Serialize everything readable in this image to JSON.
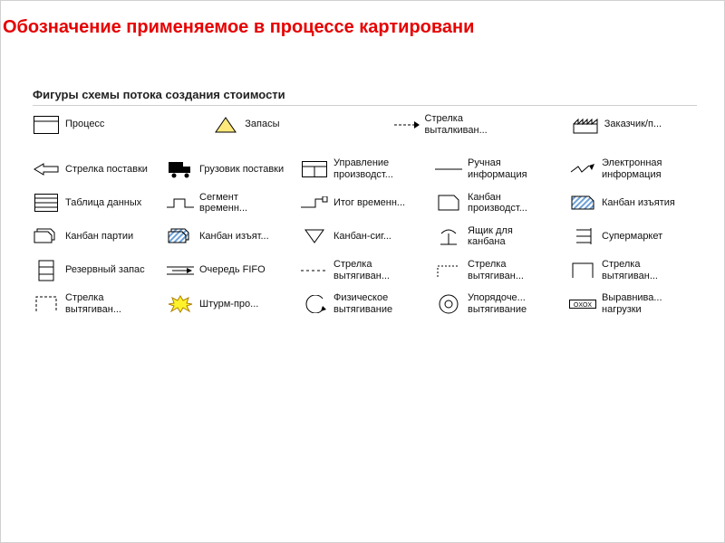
{
  "title": "Обозначение применяемое в процессе картировани",
  "panel_heading": "Фигуры схемы потока создания стоимости",
  "colors": {
    "title": "#e60000",
    "text": "#111111",
    "stroke": "#000000",
    "triangle_fill": "#ffe97a",
    "hatch": "#6aa0d8",
    "burst_fill": "#fff22b",
    "burst_stroke": "#b08000",
    "grey": "#666666",
    "light": "#ffffff"
  },
  "rows": [
    {
      "first": true,
      "items": [
        {
          "name": "process",
          "icon": "process",
          "label": "Процесс"
        },
        {
          "name": "inventory",
          "icon": "triangle",
          "label": "Запасы"
        },
        {
          "name": "push-arrow",
          "icon": "push-arrow",
          "label": "Стрелка выталкиван..."
        },
        {
          "name": "customer",
          "icon": "factory",
          "label": "Заказчик/п..."
        }
      ]
    },
    {
      "items": [
        {
          "name": "ship-arrow",
          "icon": "open-arrow",
          "label": "Стрелка поставки"
        },
        {
          "name": "truck",
          "icon": "truck",
          "label": "Грузовик поставки"
        },
        {
          "name": "prod-control",
          "icon": "control-box",
          "label": "Управление производст..."
        },
        {
          "name": "manual-info",
          "icon": "thin-line",
          "label": "Ручная информация"
        },
        {
          "name": "electronic-info",
          "icon": "lightning",
          "label": "Электронная информация"
        }
      ]
    },
    {
      "items": [
        {
          "name": "data-table",
          "icon": "data-table",
          "label": "Таблица данных"
        },
        {
          "name": "time-segment",
          "icon": "step-line",
          "label": "Сегмент временн..."
        },
        {
          "name": "time-total",
          "icon": "total-line",
          "label": "Итог временн..."
        },
        {
          "name": "prod-kanban",
          "icon": "kanban-card",
          "label": "Канбан производст..."
        },
        {
          "name": "withdraw-kanban",
          "icon": "kanban-hatch",
          "label": "Канбан изъятия"
        }
      ]
    },
    {
      "items": [
        {
          "name": "kanban-batch",
          "icon": "kanban-stack",
          "label": "Канбан партии"
        },
        {
          "name": "kanban-withdrawn",
          "icon": "kanban-hatch-s",
          "label": "Канбан изъят..."
        },
        {
          "name": "signal-kanban",
          "icon": "down-triangle",
          "label": "Канбан-сиг..."
        },
        {
          "name": "kanban-post",
          "icon": "post",
          "label": "Ящик для канбана"
        },
        {
          "name": "supermarket",
          "icon": "supermarket",
          "label": "Супермаркет"
        }
      ]
    },
    {
      "items": [
        {
          "name": "safety-stock",
          "icon": "safety-stock",
          "label": "Резервный запас"
        },
        {
          "name": "fifo",
          "icon": "fifo",
          "label": "Очередь FIFO"
        },
        {
          "name": "pull-arrow-dash",
          "icon": "dash-line",
          "label": "Стрелка вытягиван..."
        },
        {
          "name": "pull-arrow-step",
          "icon": "step-line2",
          "label": "Стрелка вытягиван..."
        },
        {
          "name": "pull-arrow-box",
          "icon": "box-border",
          "label": "Стрелка вытягиван..."
        }
      ]
    },
    {
      "items": [
        {
          "name": "pull-arrow-4",
          "icon": "box-dashed",
          "label": "Стрелка вытягиван..."
        },
        {
          "name": "kaizen-burst",
          "icon": "burst",
          "label": "Штурм-про..."
        },
        {
          "name": "physical-pull",
          "icon": "curve-arrow",
          "label": "Физическое вытягивание"
        },
        {
          "name": "sequenced-pull",
          "icon": "circle",
          "label": "Упорядоче... вытягивание"
        },
        {
          "name": "load-level",
          "icon": "oxox",
          "label": "Выравнива... нагрузки"
        }
      ]
    }
  ]
}
